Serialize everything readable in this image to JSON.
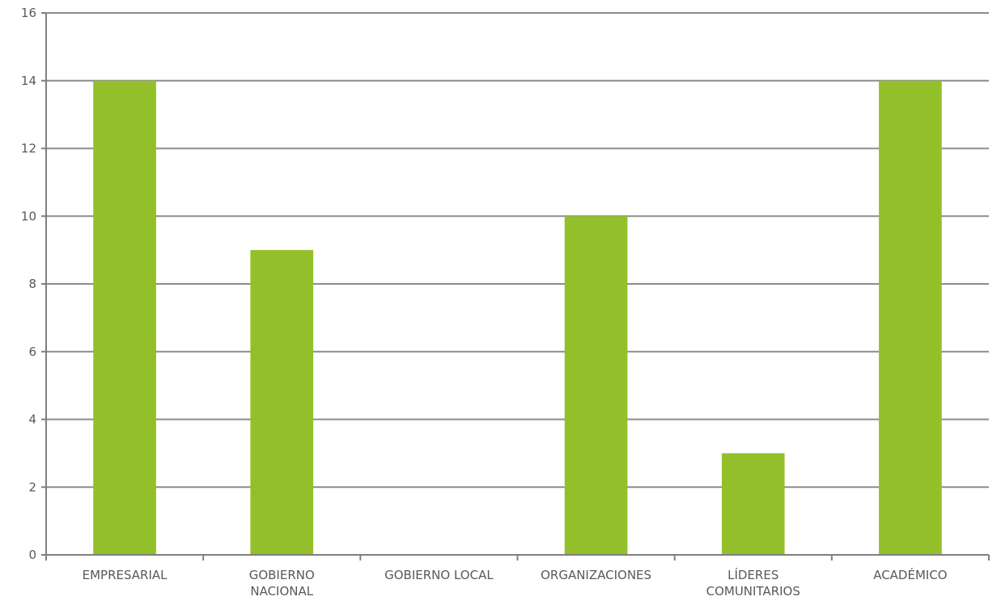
{
  "chart_data": {
    "type": "bar",
    "categories": [
      [
        "EMPRESARIAL"
      ],
      [
        "GOBIERNO",
        "NACIONAL"
      ],
      [
        "GOBIERNO LOCAL"
      ],
      [
        "ORGANIZACIONES"
      ],
      [
        "LÍDERES",
        "COMUNITARIOS"
      ],
      [
        "ACADÉMICO"
      ]
    ],
    "values": [
      14,
      9,
      0,
      10,
      3,
      14
    ],
    "ylim": [
      0,
      16
    ],
    "yticks": [
      0,
      2,
      4,
      6,
      8,
      10,
      12,
      14,
      16
    ],
    "grid": true,
    "legend": "none",
    "colors": {
      "bar": "#93c02a",
      "grid": "#8c8c8c",
      "axis": "#7f7f7f",
      "text": "#595959"
    }
  }
}
